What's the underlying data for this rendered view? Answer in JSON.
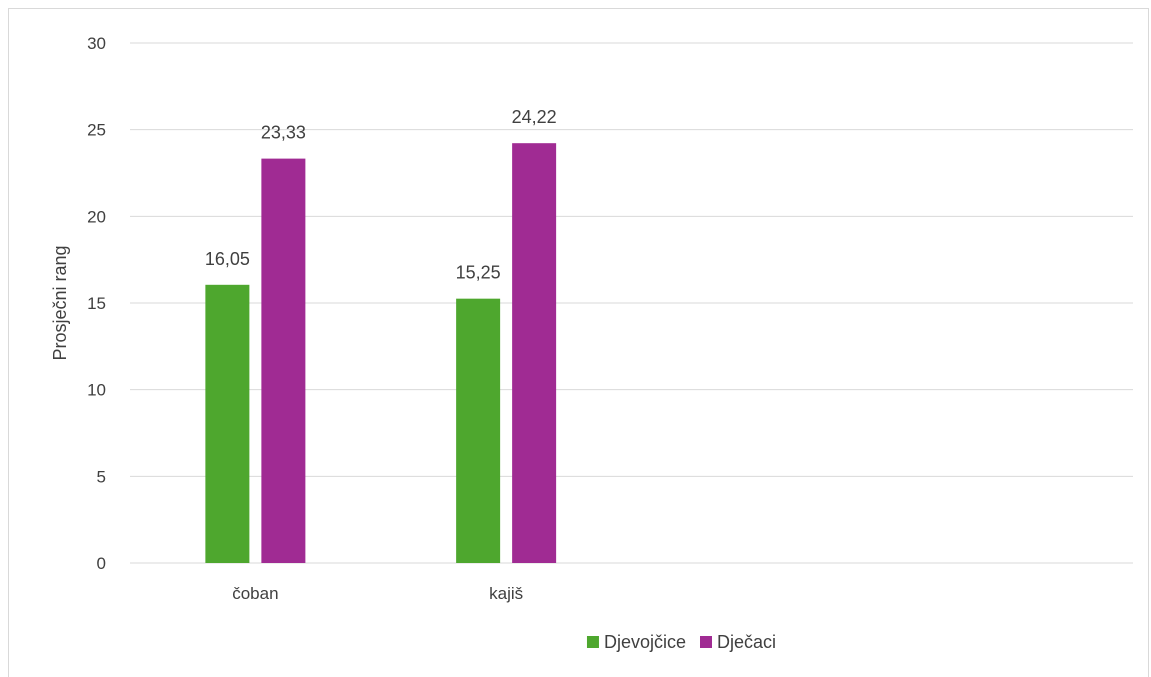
{
  "chart_data": {
    "type": "bar",
    "title": "",
    "xlabel": "",
    "ylabel": "Prosječni rang",
    "ylim": [
      0,
      30
    ],
    "yticks": [
      0,
      5,
      10,
      15,
      20,
      25,
      30
    ],
    "categories": [
      "čoban",
      "kajiš"
    ],
    "series": [
      {
        "name": "Djevojčice",
        "color": "#4ea72e",
        "values": [
          16.05,
          15.25
        ],
        "labels": [
          "16,05",
          "15,25"
        ]
      },
      {
        "name": "Dječaci",
        "color": "#a02b93",
        "values": [
          23.33,
          24.22
        ],
        "labels": [
          "23,33",
          "24,22"
        ]
      }
    ],
    "grid": true,
    "legend_position": "bottom",
    "category_slots": 4
  }
}
